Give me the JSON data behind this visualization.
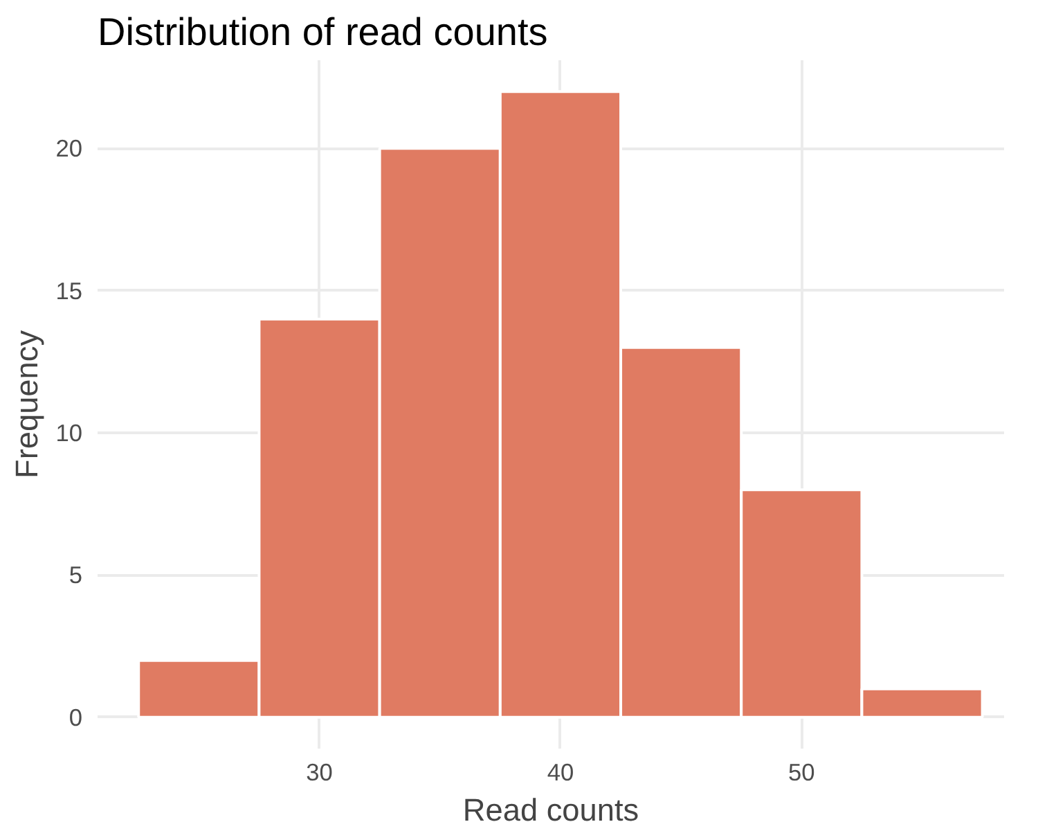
{
  "chart_data": {
    "type": "histogram",
    "title": "Distribution of read counts",
    "xlabel": "Read counts",
    "ylabel": "Frequency",
    "bins": [
      22.5,
      27.5,
      32.5,
      37.5,
      42.5,
      47.5,
      52.5,
      57.5
    ],
    "values": [
      2,
      14,
      20,
      22,
      13,
      8,
      1
    ],
    "color": "#e07b62",
    "xlim": [
      20.8,
      58.4
    ],
    "ylim": [
      -1.1,
      23.1
    ],
    "xticks": [
      30,
      40,
      50
    ],
    "yticks": [
      0,
      5,
      10,
      15,
      20
    ],
    "grid": true
  }
}
